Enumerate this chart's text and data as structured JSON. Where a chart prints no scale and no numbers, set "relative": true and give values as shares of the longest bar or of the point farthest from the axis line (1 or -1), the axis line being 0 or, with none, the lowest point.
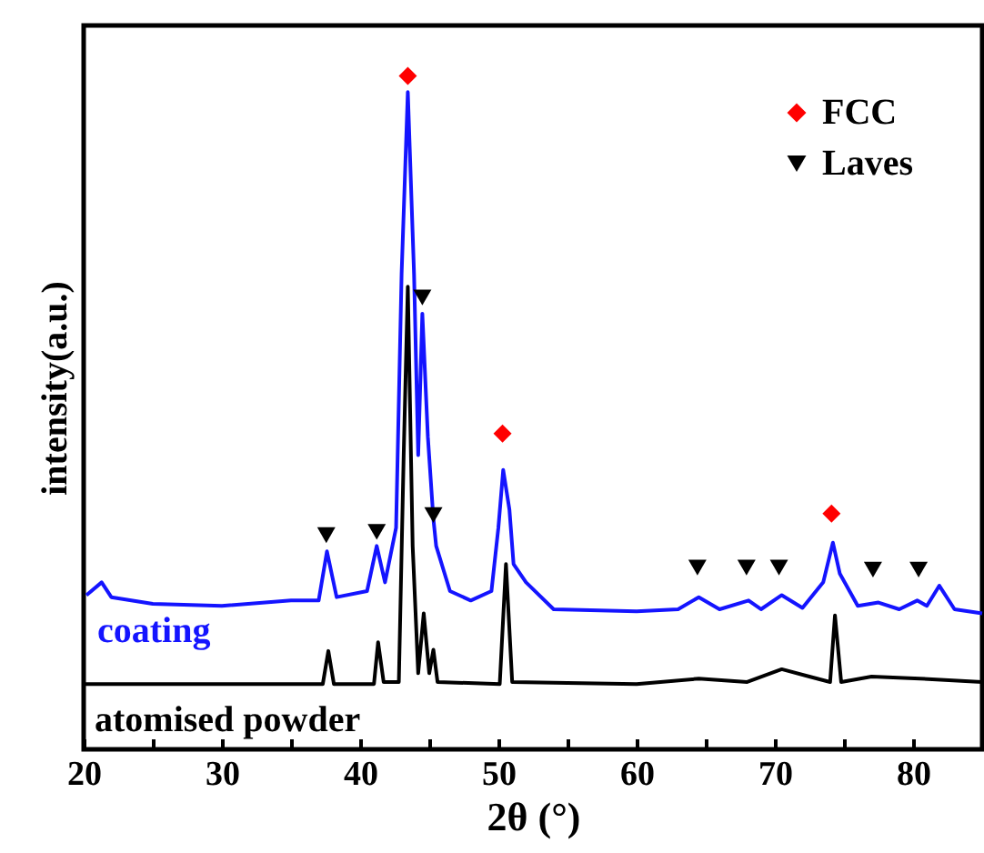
{
  "chart_data": {
    "type": "line",
    "xlabel": "2θ (°)",
    "ylabel": "intensity(a.u.)",
    "relative": true,
    "xlim": [
      20,
      85
    ],
    "xticks": [
      20,
      {
        "value": 25,
        "label": null
      },
      30,
      {
        "value": 35,
        "label": null
      },
      40,
      {
        "value": 45,
        "label": null
      },
      50,
      {
        "value": 55,
        "label": null
      },
      60,
      {
        "value": 65,
        "label": null
      },
      70,
      {
        "value": 75,
        "label": null
      },
      80
    ],
    "legend": "top right",
    "grid": false,
    "series": [
      {
        "name": "coating",
        "color": "#1414ff",
        "x": [
          20.2,
          21.3,
          22,
          25,
          30,
          35,
          37,
          37.6,
          38.3,
          40.5,
          41.2,
          41.8,
          42.6,
          43.0,
          43.45,
          43.9,
          44.2,
          44.5,
          44.9,
          45.3,
          45.5,
          46.5,
          48,
          49.5,
          50.0,
          50.35,
          50.8,
          51.1,
          52,
          54,
          60,
          63,
          64.5,
          66,
          68.1,
          69,
          70.5,
          72,
          73.5,
          74.2,
          74.7,
          76,
          77.5,
          79,
          80.3,
          81,
          81.9,
          83,
          85
        ],
        "values": [
          0.229,
          0.248,
          0.226,
          0.216,
          0.213,
          0.221,
          0.221,
          0.294,
          0.226,
          0.235,
          0.302,
          0.248,
          0.329,
          0.706,
          0.976,
          0.706,
          0.437,
          0.647,
          0.464,
          0.342,
          0.302,
          0.235,
          0.221,
          0.235,
          0.329,
          0.415,
          0.356,
          0.275,
          0.248,
          0.208,
          0.205,
          0.208,
          0.226,
          0.208,
          0.221,
          0.208,
          0.229,
          0.21,
          0.248,
          0.307,
          0.261,
          0.213,
          0.218,
          0.208,
          0.221,
          0.213,
          0.243,
          0.208,
          0.202
        ]
      },
      {
        "name": "atomised powder",
        "color": "#000000",
        "x": [
          20,
          30,
          37.3,
          37.7,
          38.1,
          41,
          41.3,
          41.7,
          42.8,
          43.15,
          43.45,
          43.8,
          44.2,
          44.6,
          45.0,
          45.3,
          45.6,
          50.1,
          50.55,
          51.0,
          60,
          64.5,
          68,
          70.5,
          72.5,
          74.0,
          74.35,
          74.8,
          77,
          80.5,
          85
        ],
        "values": [
          0.097,
          0.097,
          0.097,
          0.146,
          0.097,
          0.097,
          0.159,
          0.1,
          0.1,
          0.437,
          0.687,
          0.302,
          0.113,
          0.202,
          0.113,
          0.148,
          0.1,
          0.097,
          0.275,
          0.1,
          0.097,
          0.105,
          0.1,
          0.119,
          0.108,
          0.1,
          0.199,
          0.1,
          0.108,
          0.105,
          0.1
        ]
      },
      {
        "name": "FCC",
        "type": "scatter",
        "marker": "diamond",
        "color": "#ff0000",
        "x": [
          43.45,
          50.3,
          74.1
        ],
        "values": [
          1,
          0.469,
          0.35
        ]
      },
      {
        "name": "Laves",
        "type": "scatter",
        "marker": "triangle",
        "color": "#000000",
        "x": [
          37.55,
          41.2,
          44.5,
          45.3,
          64.4,
          67.95,
          70.3,
          77.1,
          80.4
        ],
        "values": [
          0.318,
          0.323,
          0.671,
          0.348,
          0.27,
          0.27,
          0.27,
          0.267,
          0.267
        ]
      }
    ]
  }
}
